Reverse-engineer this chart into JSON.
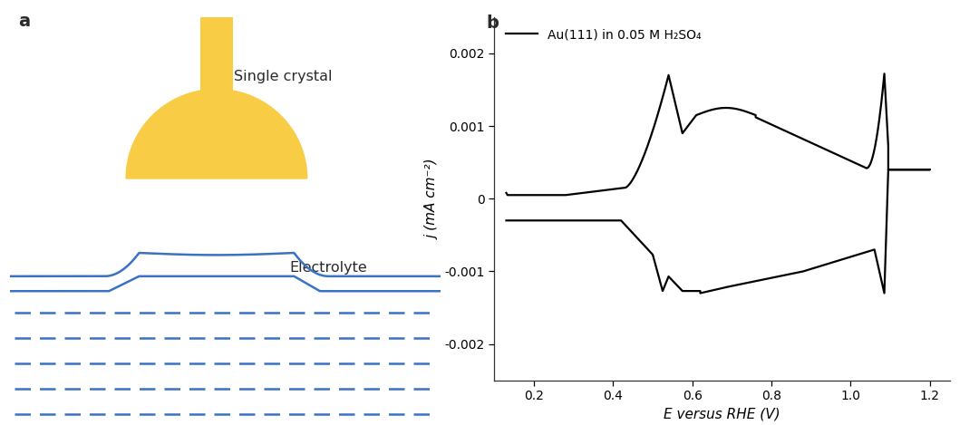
{
  "fig_width": 10.8,
  "fig_height": 4.69,
  "bg_color": "#ffffff",
  "panel_a_label": "a",
  "panel_b_label": "b",
  "crystal_color": "#F9CC45",
  "electrolyte_line_color": "#3A72C4",
  "electrolyte_label": "Electrolyte",
  "crystal_label": "Single crystal",
  "legend_label": "Au(111) in 0.05 M H₂SO₄",
  "xlabel": "E versus RHE (V)",
  "ylabel": "j (mA cm⁻²)",
  "xlim": [
    0.1,
    1.25
  ],
  "ylim": [
    -0.0025,
    0.0025
  ],
  "xticks": [
    0.2,
    0.4,
    0.6,
    0.8,
    1.0,
    1.2
  ],
  "yticks": [
    -0.002,
    -0.001,
    0,
    0.001,
    0.002
  ],
  "ytick_labels": [
    "-0.002",
    "-0.001",
    "0",
    "0.001",
    "0.002"
  ]
}
